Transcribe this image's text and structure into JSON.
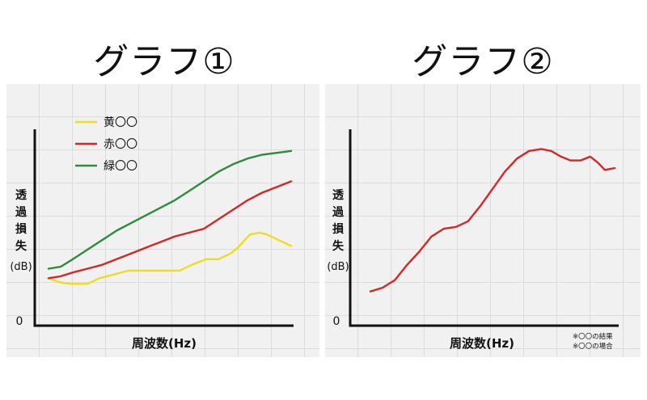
{
  "panels": [
    {
      "title": "グラフ①"
    },
    {
      "title": "グラフ②"
    }
  ],
  "notes": [
    "※〇〇の結果",
    "※〇〇の場合"
  ],
  "chart_data": [
    {
      "type": "line",
      "title": "グラフ①",
      "xlabel": "周波数(Hz)",
      "ylabel": "透過損失",
      "yunit": "(dB)",
      "ytick": "0",
      "grid": true,
      "legend_position": "top-left",
      "xlim": [
        0,
        100
      ],
      "ylim": [
        0,
        100
      ],
      "series": [
        {
          "name": "黄〇〇",
          "color": "#f0dc1e",
          "x": [
            0,
            4,
            9,
            16,
            21,
            27,
            33,
            38,
            43,
            49,
            54,
            59,
            65,
            70,
            75,
            78,
            83,
            87,
            90,
            95,
            100
          ],
          "y": [
            25,
            23,
            22,
            22,
            25,
            27,
            29,
            29,
            29,
            29,
            29,
            32,
            35,
            35,
            38,
            41,
            48,
            49,
            48,
            45,
            42
          ]
        },
        {
          "name": "赤〇〇",
          "color": "#d42828",
          "x": [
            0,
            5,
            10,
            16,
            22,
            28,
            34,
            40,
            46,
            52,
            58,
            64,
            70,
            76,
            82,
            88,
            94,
            100
          ],
          "y": [
            25,
            26,
            28,
            30,
            32,
            35,
            38,
            41,
            44,
            47,
            49,
            51,
            56,
            61,
            66,
            70,
            73,
            76
          ]
        },
        {
          "name": "緑〇〇",
          "color": "#2e8b3c",
          "x": [
            0,
            5,
            10,
            16,
            22,
            28,
            34,
            40,
            46,
            52,
            58,
            64,
            70,
            76,
            82,
            88,
            94,
            100
          ],
          "y": [
            30,
            31,
            35,
            40,
            45,
            50,
            54,
            58,
            62,
            66,
            71,
            76,
            81,
            85,
            88,
            90,
            91,
            92
          ]
        }
      ]
    },
    {
      "type": "line",
      "title": "グラフ②",
      "xlabel": "周波数(Hz)",
      "ylabel": "透過損失",
      "yunit": "(dB)",
      "ytick": "0",
      "grid": true,
      "xlim": [
        0,
        100
      ],
      "ylim": [
        0,
        100
      ],
      "series": [
        {
          "name": "",
          "color": "#d42828",
          "x": [
            0,
            5,
            10,
            15,
            20,
            25,
            30,
            35,
            40,
            45,
            50,
            55,
            60,
            65,
            70,
            74,
            78,
            82,
            86,
            90,
            93,
            96,
            100
          ],
          "y": [
            18,
            20,
            24,
            32,
            39,
            47,
            51,
            52,
            55,
            63,
            72,
            81,
            88,
            92,
            93,
            92,
            89,
            87,
            87,
            89,
            86,
            82,
            83
          ]
        }
      ]
    }
  ]
}
